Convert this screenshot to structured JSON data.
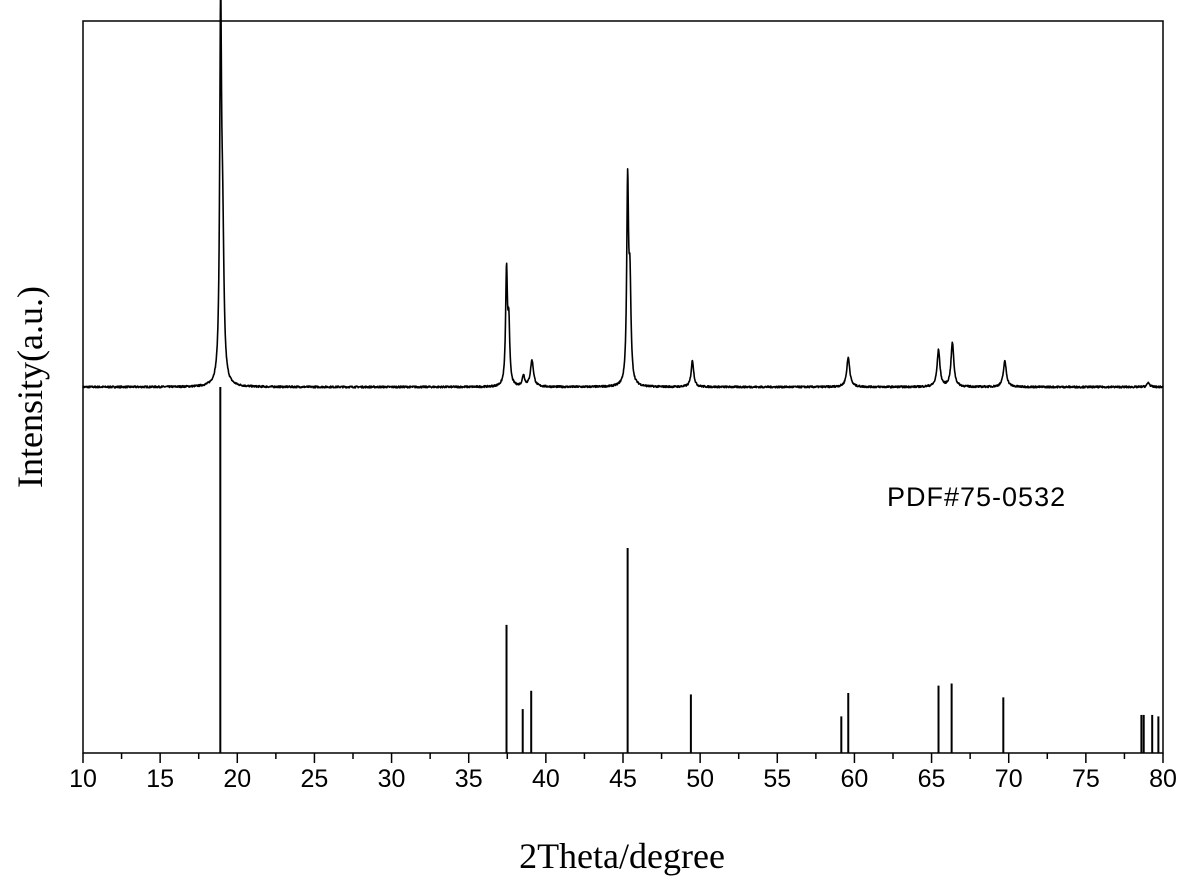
{
  "chart_data": {
    "type": "line",
    "xlabel": "2Theta/degree",
    "ylabel": "Intensity(a.u.)",
    "xlim": [
      10,
      80
    ],
    "ylim": [
      0,
      100
    ],
    "xticks": [
      10,
      15,
      20,
      25,
      30,
      35,
      40,
      45,
      50,
      55,
      60,
      65,
      70,
      75,
      80
    ],
    "grid": false,
    "legend": "none",
    "annotations": [
      {
        "text": "PDF#75-0532",
        "x": 74.5,
        "y": 33.5
      }
    ],
    "series": [
      {
        "kind": "profile",
        "baseline": 50,
        "noise": 0.25,
        "peaks": [
          {
            "x": 18.92,
            "y": 48.5,
            "w": 0.07
          },
          {
            "x": 19.05,
            "y": 18.5,
            "w": 0.1
          },
          {
            "x": 37.45,
            "y": 15.5,
            "w": 0.07
          },
          {
            "x": 37.6,
            "y": 8.0,
            "w": 0.07
          },
          {
            "x": 38.55,
            "y": 1.5,
            "w": 0.09
          },
          {
            "x": 39.1,
            "y": 3.6,
            "w": 0.12
          },
          {
            "x": 45.3,
            "y": 27.0,
            "w": 0.07
          },
          {
            "x": 45.45,
            "y": 13.0,
            "w": 0.08
          },
          {
            "x": 49.5,
            "y": 3.6,
            "w": 0.1
          },
          {
            "x": 59.6,
            "y": 4.0,
            "w": 0.12
          },
          {
            "x": 65.45,
            "y": 5.0,
            "w": 0.11
          },
          {
            "x": 66.35,
            "y": 6.0,
            "w": 0.11
          },
          {
            "x": 69.75,
            "y": 3.5,
            "w": 0.12
          },
          {
            "x": 79.05,
            "y": 0.6,
            "w": 0.1
          }
        ]
      },
      {
        "kind": "reference",
        "baseline": 0,
        "lines": [
          {
            "x": 18.9,
            "y": 50
          },
          {
            "x": 37.45,
            "y": 17.5
          },
          {
            "x": 38.5,
            "y": 6.0
          },
          {
            "x": 39.05,
            "y": 8.5
          },
          {
            "x": 45.3,
            "y": 28.0
          },
          {
            "x": 49.4,
            "y": 8.0
          },
          {
            "x": 59.15,
            "y": 5.0
          },
          {
            "x": 59.6,
            "y": 8.2
          },
          {
            "x": 65.45,
            "y": 9.2
          },
          {
            "x": 66.3,
            "y": 9.5
          },
          {
            "x": 69.65,
            "y": 7.6
          },
          {
            "x": 78.6,
            "y": 5.2
          },
          {
            "x": 78.75,
            "y": 5.2
          },
          {
            "x": 79.3,
            "y": 5.2
          },
          {
            "x": 79.7,
            "y": 5.0
          }
        ]
      }
    ]
  }
}
